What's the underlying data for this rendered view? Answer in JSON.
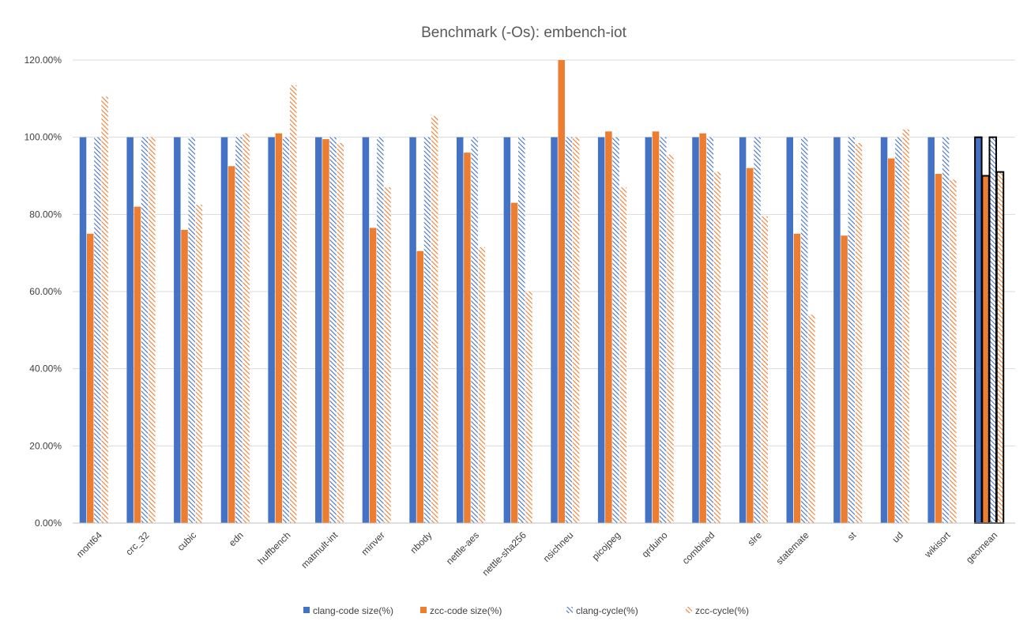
{
  "chart_data": {
    "type": "bar",
    "title": "Benchmark (-Os): embench-iot",
    "xlabel": "",
    "ylabel": "",
    "ylim": [
      0,
      120
    ],
    "yticks": [
      "0.00%",
      "20.00%",
      "40.00%",
      "60.00%",
      "80.00%",
      "100.00%",
      "120.00%"
    ],
    "grid": true,
    "legend_position": "bottom",
    "categories": [
      "mont64",
      "crc_32",
      "cubic",
      "edn",
      "huffbench",
      "matmult-int",
      "minver",
      "nbody",
      "nettle-aes",
      "nettle-sha256",
      "nsichneu",
      "picojpeg",
      "qrduino",
      "combined",
      "slre",
      "statemate",
      "st",
      "ud",
      "wikisort",
      "geomean"
    ],
    "series": [
      {
        "name": "clang-code size(%)",
        "color": "#4472C4",
        "pattern": "solid",
        "values": [
          100,
          100,
          100,
          100,
          100,
          100,
          100,
          100,
          100,
          100,
          100,
          100,
          100,
          100,
          100,
          100,
          100,
          100,
          100,
          100
        ]
      },
      {
        "name": "zcc-code size(%)",
        "color": "#ED7D31",
        "pattern": "solid",
        "values": [
          75,
          82,
          76,
          92.5,
          101,
          99.5,
          76.5,
          70.5,
          96,
          83,
          120,
          101.5,
          101.5,
          101,
          92,
          75,
          74.5,
          94.5,
          90.5,
          90
        ]
      },
      {
        "name": "clang-cycle(%)",
        "color": "#4472C4",
        "pattern": "hatch",
        "values": [
          100,
          100,
          100,
          100,
          100,
          100,
          100,
          100,
          100,
          100,
          100,
          100,
          100,
          100,
          100,
          100,
          100,
          100,
          100,
          100
        ]
      },
      {
        "name": "zcc-cycle(%)",
        "color": "#ED7D31",
        "pattern": "hatch",
        "values": [
          110.5,
          100,
          82.5,
          101,
          113.5,
          98.5,
          87,
          105.5,
          71.5,
          60,
          100,
          87,
          95.5,
          91,
          79.5,
          54,
          98.5,
          102,
          89,
          91
        ]
      }
    ],
    "highlighted_category": "geomean"
  }
}
